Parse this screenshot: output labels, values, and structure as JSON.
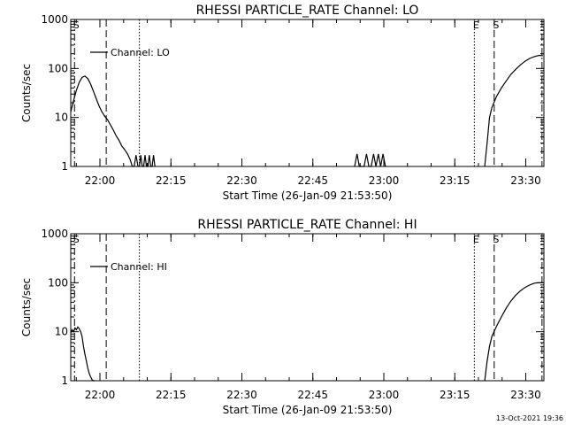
{
  "footer_timestamp": "13-Oct-2021 19:36",
  "colors": {
    "background": "#ffffff",
    "ink": "#000000"
  },
  "chart_data": [
    {
      "type": "line",
      "title": "RHESSI PARTICLE_RATE Channel: LO",
      "xlabel": "Start Time (26-Jan-09 21:53:50)",
      "ylabel": "Counts/sec",
      "yscale": "log",
      "ylim": [
        1,
        1000
      ],
      "xlim_minutes": [
        0,
        100
      ],
      "x_ticks": [
        "22:00",
        "22:15",
        "22:30",
        "22:45",
        "23:00",
        "23:15",
        "23:30"
      ],
      "x_tick_minutes": [
        6.17,
        21.17,
        36.17,
        51.17,
        66.17,
        81.17,
        96.17
      ],
      "y_ticks": [
        "1",
        "10",
        "100",
        "1000"
      ],
      "y_tick_values": [
        1,
        10,
        100,
        1000
      ],
      "legend": {
        "label": "Channel: LO",
        "position": "top-left"
      },
      "markers": [
        {
          "label": "S",
          "minute": 0.8,
          "style": "dash-dot"
        },
        {
          "label": "",
          "minute": 7.5,
          "style": "dashed"
        },
        {
          "label": "",
          "minute": 14.5,
          "style": "dotted"
        },
        {
          "label": "E",
          "minute": 85.3,
          "style": "dotted"
        },
        {
          "label": "S",
          "minute": 89.5,
          "style": "dashed"
        },
        {
          "label": "",
          "minute": 99.6,
          "style": "dash-dot"
        }
      ],
      "series": [
        {
          "x": [
            0,
            0.6,
            1.2,
            1.8,
            2.4,
            3.0,
            3.6,
            4.2,
            4.8,
            5.4,
            6.0,
            6.6,
            7.2,
            7.8,
            8.4,
            9.0,
            9.6,
            10.2,
            10.8,
            11.4,
            12.0,
            12.6,
            13.0,
            13.4,
            13.8,
            14.2,
            14.5,
            14.8,
            15.1,
            15.4,
            15.7,
            16.0,
            16.3,
            16.6,
            16.9,
            17.2,
            17.5,
            17.8,
            60,
            60.5,
            61,
            61.5,
            62,
            62.5,
            63,
            63.5,
            64,
            64.5,
            65,
            65.5,
            66,
            66.5,
            87.5,
            88,
            88.5,
            89,
            90,
            91,
            92,
            93,
            94,
            95,
            96,
            97,
            98,
            99,
            99.8
          ],
          "y": [
            13,
            22,
            36,
            52,
            66,
            70,
            62,
            48,
            34,
            24,
            17,
            13,
            10.5,
            9,
            7,
            5.5,
            4.2,
            3.4,
            2.6,
            2.2,
            1.8,
            1.35,
            1,
            1,
            1.7,
            1,
            1,
            1.7,
            1,
            1,
            1.7,
            1,
            1,
            1.7,
            1,
            1,
            1.7,
            1,
            1,
            1.8,
            1,
            1,
            1,
            1.8,
            1,
            1,
            1.8,
            1,
            1.8,
            1,
            1.8,
            1,
            1,
            3,
            10,
            16,
            27,
            40,
            55,
            75,
            95,
            118,
            140,
            160,
            175,
            185,
            182
          ]
        }
      ]
    },
    {
      "type": "line",
      "title": "RHESSI PARTICLE_RATE Channel: HI",
      "xlabel": "Start Time (26-Jan-09 21:53:50)",
      "ylabel": "Counts/sec",
      "yscale": "log",
      "ylim": [
        1,
        1000
      ],
      "xlim_minutes": [
        0,
        100
      ],
      "x_ticks": [
        "22:00",
        "22:15",
        "22:30",
        "22:45",
        "23:00",
        "23:15",
        "23:30"
      ],
      "x_tick_minutes": [
        6.17,
        21.17,
        36.17,
        51.17,
        66.17,
        81.17,
        96.17
      ],
      "y_ticks": [
        "1",
        "10",
        "100",
        "1000"
      ],
      "y_tick_values": [
        1,
        10,
        100,
        1000
      ],
      "legend": {
        "label": "Channel: HI",
        "position": "top-left"
      },
      "markers": [
        {
          "label": "S",
          "minute": 0.8,
          "style": "dash-dot"
        },
        {
          "label": "",
          "minute": 7.5,
          "style": "dashed"
        },
        {
          "label": "",
          "minute": 14.5,
          "style": "dotted"
        },
        {
          "label": "E",
          "minute": 85.3,
          "style": "dotted"
        },
        {
          "label": "S",
          "minute": 89.5,
          "style": "dashed"
        },
        {
          "label": "",
          "minute": 99.6,
          "style": "dash-dot"
        }
      ],
      "series": [
        {
          "x": [
            0,
            0.3,
            0.6,
            0.9,
            1.2,
            1.5,
            1.8,
            2.1,
            2.4,
            2.7,
            3.0,
            3.3,
            3.6,
            3.9,
            4.2,
            4.5,
            4.8,
            5.1,
            87.5,
            88,
            88.5,
            89,
            90,
            91,
            92,
            93,
            94,
            95,
            96,
            97,
            98,
            99,
            99.8
          ],
          "y": [
            9.5,
            11,
            10,
            12,
            11,
            12.5,
            11.5,
            10,
            8,
            5,
            3.5,
            2.5,
            1.8,
            1.4,
            1.2,
            1.05,
            1,
            1,
            1,
            2.5,
            5,
            8,
            13,
            20,
            30,
            42,
            55,
            68,
            80,
            90,
            98,
            100,
            100
          ]
        }
      ]
    }
  ]
}
